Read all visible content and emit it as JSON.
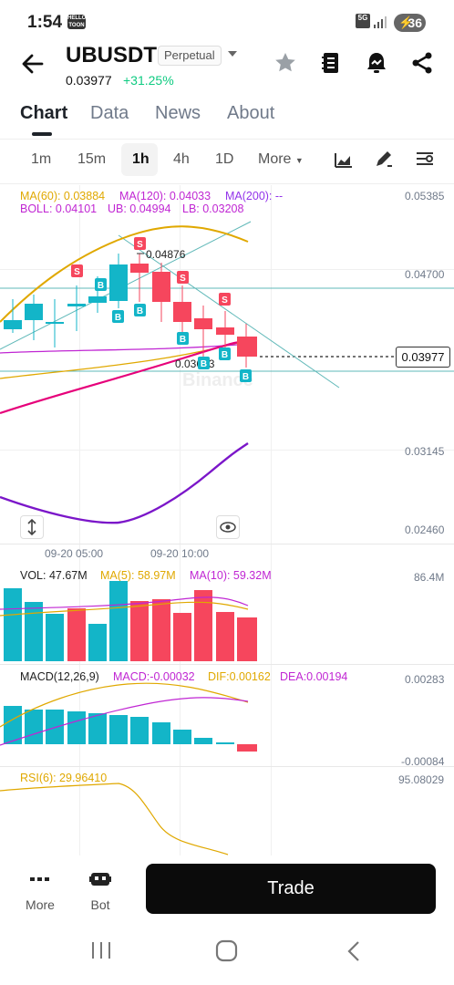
{
  "status_bar": {
    "time": "1:54",
    "notif_icon_text": "HELLO TOON",
    "network": "5G",
    "battery": "36"
  },
  "header": {
    "symbol": "UBUSDT",
    "contract_type": "Perpetual",
    "last_price": "0.03977",
    "change_pct": "+31.25%"
  },
  "tabs": [
    {
      "label": "Chart",
      "active": true
    },
    {
      "label": "Data"
    },
    {
      "label": "News"
    },
    {
      "label": "About"
    }
  ],
  "intervals": [
    {
      "label": "1m"
    },
    {
      "label": "15m"
    },
    {
      "label": "1h",
      "active": true
    },
    {
      "label": "4h"
    },
    {
      "label": "1D"
    },
    {
      "label": "More"
    }
  ],
  "indicators": {
    "ma60": "MA(60): 0.03884",
    "ma120": "MA(120): 0.04033",
    "ma200": "MA(200): --",
    "boll": "BOLL: 0.04101",
    "ub": "UB: 0.04994",
    "lb": "LB: 0.03208",
    "vol": "VOL: 47.67M",
    "vol_ma5": "MA(5): 58.97M",
    "vol_ma10": "MA(10): 59.32M",
    "macd_label": "MACD(12,26,9)",
    "macd": "MACD:-0.00032",
    "dif": "DIF:0.00162",
    "dea": "DEA:0.00194",
    "rsi": "RSI(6): 29.96410"
  },
  "price_axis": [
    "0.05385",
    "0.04700",
    "0.03145",
    "0.02460"
  ],
  "current_price_label": "0.03977",
  "high_marker": "0.04876",
  "low_marker": "0.03613",
  "time_axis": [
    "09-20 05:00",
    "09-20 10:00"
  ],
  "vol_axis": "86.4M",
  "macd_axis": [
    "0.00283",
    "-0.00084"
  ],
  "rsi_axis": "95.08029",
  "trade_markers": {
    "buy": "B",
    "sell": "S"
  },
  "bottom_bar": {
    "more_label": "More",
    "bot_label": "Bot",
    "trade_label": "Trade"
  },
  "colors": {
    "up": "#13b5c8",
    "down": "#f6465d",
    "ma60": "#f0b90b",
    "ma120": "#c026d3",
    "boll": "#8b2fc9",
    "accent_green": "#0ecb81"
  }
}
